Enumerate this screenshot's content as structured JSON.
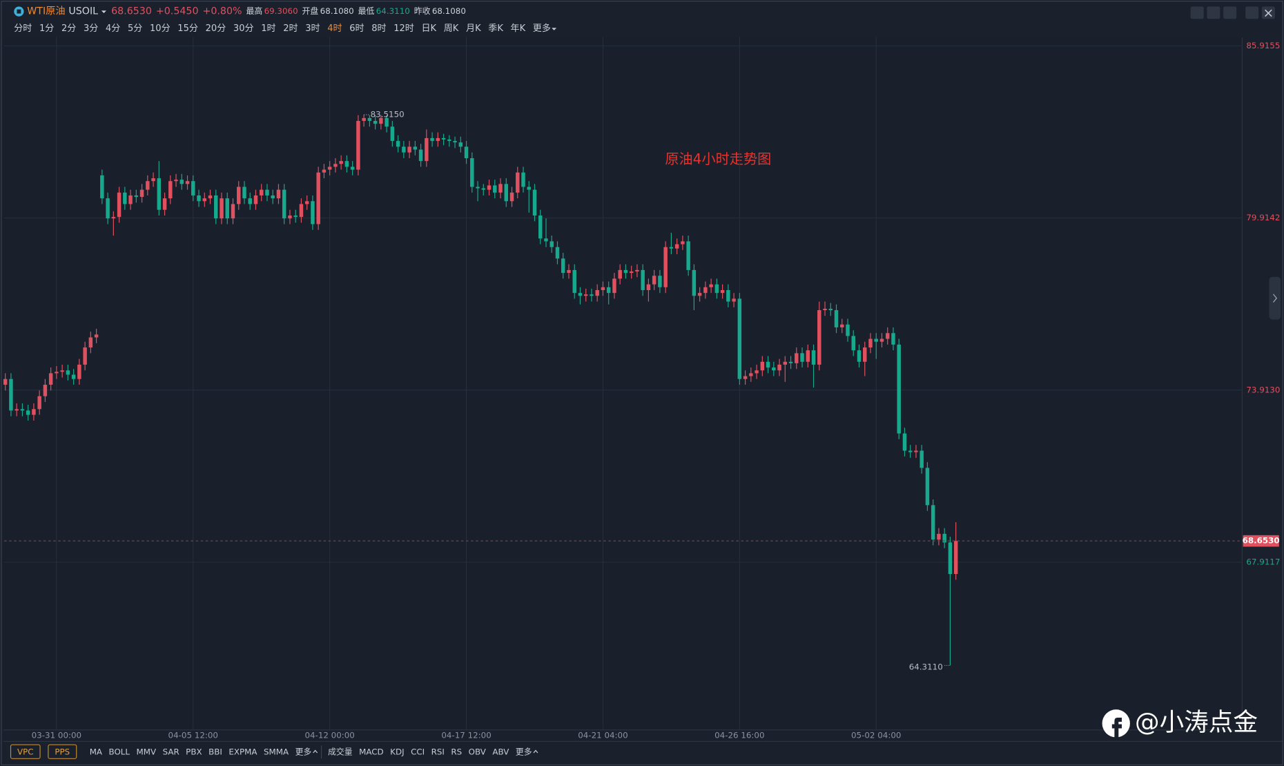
{
  "header": {
    "name": "WTI原油",
    "code": "USOIL",
    "price": "68.6530",
    "change": "+0.5450",
    "change_pct": "+0.80%",
    "stats": [
      {
        "label": "最高",
        "value": "69.3060"
      },
      {
        "label": "开盘",
        "value": "68.1080"
      },
      {
        "label": "最低",
        "value": "64.3110"
      },
      {
        "label": "昨收",
        "value": "68.1080"
      }
    ]
  },
  "toolbar": {
    "periods": [
      "分时",
      "1分",
      "2分",
      "3分",
      "4分",
      "5分",
      "10分",
      "15分",
      "20分",
      "30分",
      "1时",
      "2时",
      "3时",
      "4时",
      "6时",
      "8时",
      "12时",
      "日K",
      "周K",
      "月K",
      "季K",
      "年K",
      "更多"
    ],
    "active_period": "4时"
  },
  "indicators": {
    "tags": [
      "VPC",
      "PPS"
    ],
    "main": [
      "MA",
      "BOLL",
      "MMV",
      "SAR",
      "PBX",
      "BBI",
      "EXPMA",
      "SMMA",
      "更多"
    ],
    "sub": [
      "成交量",
      "MACD",
      "KDJ",
      "CCI",
      "RSI",
      "RS",
      "OBV",
      "ABV",
      "更多"
    ]
  },
  "watermark": "@小涛点金",
  "chart_data": {
    "type": "candlestick",
    "annotation": "原油4小时走势图",
    "up_color": "#e0505f",
    "down_color": "#17a98d",
    "max_label": "83.5150",
    "min_label": "64.3110",
    "last_label": "68.6530",
    "ylim": [
      62.09,
      86.23
    ],
    "yticks": [
      85.9155,
      79.9142,
      {
        "value": 73.913,
        "label": "73.9130"
      },
      67.9117
    ],
    "xlim": [
      -0.2,
      217.3
    ],
    "xticks": [
      {
        "value": 9,
        "label": "03-31 00:00"
      },
      {
        "value": 33,
        "label": "04-05 12:00"
      },
      {
        "value": 57,
        "label": "04-12 00:00"
      },
      {
        "value": 81,
        "label": "04-17 12:00"
      },
      {
        "value": 105,
        "label": "04-21 04:00"
      },
      {
        "value": 129,
        "label": "04-26 16:00"
      },
      {
        "value": 153,
        "label": "05-02 04:00"
      }
    ],
    "grid": true,
    "open": [
      74.1,
      74.3,
      73.2,
      73.25,
      73.2,
      73.05,
      73.25,
      73.7,
      74.1,
      74.5,
      74.55,
      74.6,
      74.45,
      74.3,
      74.8,
      75.4,
      75.75,
      81.4,
      80.6,
      79.9,
      79.95,
      80.8,
      80.4,
      80.7,
      80.65,
      80.9,
      81.2,
      81.3,
      80.2,
      80.6,
      81.2,
      81.25,
      81.1,
      81.2,
      80.7,
      80.5,
      80.6,
      80.7,
      79.9,
      80.6,
      79.9,
      80.4,
      81.0,
      80.6,
      80.4,
      80.7,
      80.9,
      80.7,
      80.6,
      80.9,
      79.9,
      80.0,
      79.95,
      80.4,
      80.5,
      79.7,
      81.5,
      81.6,
      81.7,
      81.8,
      81.9,
      81.7,
      81.6,
      83.3,
      83.4,
      83.3,
      83.2,
      83.4,
      83.1,
      82.6,
      82.4,
      82.2,
      82.4,
      82.3,
      81.9,
      82.7,
      82.6,
      82.7,
      82.65,
      82.6,
      82.55,
      82.4,
      82.0,
      81.0,
      80.95,
      80.9,
      81.05,
      80.8,
      81.1,
      80.5,
      80.8,
      81.5,
      81.0,
      80.9,
      80.0,
      79.2,
      79.1,
      78.9,
      78.5,
      78.0,
      78.1,
      77.3,
      77.2,
      77.25,
      77.2,
      77.4,
      77.5,
      77.3,
      77.8,
      78.1,
      78.0,
      78.05,
      78.1,
      77.4,
      77.6,
      77.9,
      77.5,
      78.9,
      78.85,
      79.0,
      79.1,
      78.1,
      77.2,
      77.3,
      77.5,
      77.6,
      77.3,
      77.4,
      77.0,
      77.1,
      74.3,
      74.4,
      74.5,
      74.6,
      74.9,
      74.7,
      74.6,
      74.8,
      74.9,
      74.85,
      75.2,
      74.9,
      75.3,
      74.8,
      76.7,
      76.75,
      76.7,
      76.1,
      76.2,
      75.8,
      75.3,
      74.9,
      75.4,
      75.7,
      75.6,
      75.7,
      75.9,
      75.5,
      72.4,
      71.8,
      71.75,
      71.8,
      71.2,
      69.9,
      68.7,
      68.9,
      68.6,
      67.5
    ],
    "high": [
      74.5,
      74.5,
      73.45,
      73.45,
      73.4,
      73.45,
      73.9,
      74.3,
      74.7,
      74.75,
      74.8,
      74.8,
      74.65,
      75.0,
      75.6,
      75.95,
      76.05,
      81.6,
      80.8,
      80.15,
      81.0,
      81.0,
      80.9,
      80.9,
      81.1,
      81.4,
      81.5,
      81.9,
      80.8,
      81.4,
      81.45,
      81.45,
      81.4,
      81.4,
      80.9,
      80.8,
      80.9,
      80.9,
      80.8,
      80.8,
      80.6,
      81.2,
      81.2,
      80.8,
      80.9,
      81.1,
      81.1,
      80.9,
      81.1,
      81.1,
      80.2,
      80.2,
      80.6,
      80.7,
      80.7,
      81.7,
      81.8,
      81.9,
      82.0,
      82.1,
      82.1,
      81.9,
      83.5,
      83.515,
      83.5,
      83.5,
      83.5,
      83.5,
      83.3,
      82.8,
      82.6,
      82.6,
      82.6,
      82.5,
      83.0,
      82.9,
      82.9,
      82.85,
      82.8,
      82.75,
      82.75,
      82.6,
      82.2,
      81.2,
      81.1,
      81.25,
      81.25,
      81.3,
      81.3,
      81.0,
      81.7,
      81.7,
      81.2,
      81.1,
      80.2,
      79.9,
      79.3,
      79.1,
      78.7,
      78.3,
      78.3,
      77.5,
      77.45,
      77.45,
      77.6,
      77.7,
      77.7,
      78.0,
      78.3,
      78.3,
      78.25,
      78.3,
      78.3,
      77.8,
      78.1,
      78.1,
      79.1,
      79.4,
      79.2,
      79.3,
      79.3,
      78.3,
      77.5,
      77.7,
      77.8,
      77.8,
      77.6,
      77.6,
      77.3,
      77.3,
      74.6,
      74.7,
      74.8,
      75.1,
      75.1,
      74.9,
      75.0,
      75.1,
      75.1,
      75.4,
      75.4,
      75.5,
      75.5,
      77.0,
      77.0,
      76.95,
      76.9,
      76.4,
      76.4,
      76.0,
      75.5,
      75.6,
      75.9,
      75.9,
      75.9,
      76.1,
      76.1,
      75.7,
      72.6,
      72.0,
      72.0,
      72.0,
      71.4,
      70.1,
      69.1,
      69.1,
      68.8,
      69.306
    ],
    "low": [
      73.9,
      73.0,
      73.0,
      73.0,
      72.85,
      72.85,
      73.05,
      73.5,
      73.9,
      74.3,
      74.35,
      74.25,
      74.1,
      74.1,
      74.6,
      75.2,
      75.55,
      80.4,
      79.7,
      79.3,
      79.75,
      80.2,
      80.2,
      80.45,
      80.45,
      80.7,
      81.0,
      80.0,
      80.0,
      80.4,
      81.0,
      80.9,
      80.9,
      80.5,
      80.3,
      80.3,
      80.4,
      79.7,
      79.7,
      79.7,
      79.7,
      80.2,
      80.4,
      80.2,
      80.2,
      80.5,
      80.5,
      80.4,
      80.4,
      79.7,
      79.7,
      79.75,
      79.75,
      80.2,
      79.5,
      79.5,
      81.3,
      81.4,
      81.5,
      81.6,
      81.5,
      81.4,
      81.4,
      83.1,
      83.1,
      83.0,
      83.0,
      82.9,
      82.4,
      82.2,
      82.0,
      82.0,
      82.1,
      81.7,
      81.7,
      82.4,
      82.4,
      82.45,
      82.4,
      82.35,
      82.2,
      81.8,
      80.8,
      80.5,
      80.7,
      80.7,
      80.6,
      80.6,
      80.3,
      80.3,
      80.6,
      80.8,
      80.1,
      79.8,
      79.0,
      78.9,
      78.7,
      78.3,
      77.8,
      77.8,
      77.1,
      76.9,
      77.0,
      77.0,
      77.0,
      77.2,
      76.9,
      77.1,
      77.6,
      77.8,
      77.8,
      77.85,
      77.2,
      77.0,
      77.4,
      77.3,
      77.3,
      78.65,
      78.65,
      78.8,
      77.9,
      76.7,
      77.0,
      77.1,
      77.3,
      77.1,
      77.1,
      76.8,
      76.8,
      74.1,
      74.1,
      74.2,
      74.3,
      74.4,
      74.5,
      74.4,
      74.4,
      74.2,
      74.65,
      74.65,
      74.7,
      74.7,
      74.0,
      74.6,
      76.5,
      76.5,
      75.9,
      75.9,
      75.6,
      75.1,
      74.7,
      74.4,
      75.2,
      75.0,
      75.4,
      75.5,
      75.3,
      72.2,
      71.6,
      71.55,
      71.55,
      71.0,
      69.7,
      68.5,
      68.5,
      68.4,
      64.311,
      67.3
    ],
    "close": [
      74.3,
      73.2,
      73.25,
      73.2,
      73.05,
      73.25,
      73.7,
      74.1,
      74.5,
      74.55,
      74.6,
      74.45,
      74.3,
      74.8,
      75.4,
      75.75,
      75.85,
      80.6,
      79.9,
      79.95,
      80.8,
      80.4,
      80.7,
      80.65,
      80.9,
      81.2,
      81.3,
      80.2,
      80.6,
      81.2,
      81.25,
      81.1,
      81.2,
      80.7,
      80.5,
      80.6,
      80.7,
      79.9,
      80.6,
      79.9,
      80.4,
      81.0,
      80.6,
      80.4,
      80.7,
      80.9,
      80.7,
      80.6,
      80.9,
      79.9,
      80.0,
      79.95,
      80.4,
      80.5,
      79.7,
      81.5,
      81.6,
      81.7,
      81.8,
      81.9,
      81.7,
      81.6,
      83.3,
      83.4,
      83.3,
      83.2,
      83.4,
      83.1,
      82.6,
      82.4,
      82.2,
      82.4,
      82.3,
      81.9,
      82.7,
      82.6,
      82.7,
      82.65,
      82.6,
      82.55,
      82.4,
      82.0,
      81.0,
      80.95,
      80.9,
      81.05,
      80.8,
      81.1,
      80.5,
      80.8,
      81.5,
      81.0,
      80.9,
      80.0,
      79.2,
      79.1,
      78.9,
      78.5,
      78.0,
      78.1,
      77.3,
      77.2,
      77.25,
      77.2,
      77.4,
      77.5,
      77.3,
      77.8,
      78.1,
      78.0,
      78.05,
      78.1,
      77.4,
      77.6,
      77.9,
      77.5,
      78.9,
      78.85,
      79.0,
      79.1,
      78.1,
      77.2,
      77.3,
      77.5,
      77.6,
      77.3,
      77.4,
      77.0,
      77.1,
      74.3,
      74.4,
      74.5,
      74.6,
      74.9,
      74.7,
      74.6,
      74.8,
      74.9,
      74.85,
      75.2,
      74.9,
      75.3,
      74.8,
      76.7,
      76.75,
      76.7,
      76.1,
      76.2,
      75.8,
      75.3,
      74.9,
      75.4,
      75.7,
      75.6,
      75.7,
      75.9,
      75.5,
      72.4,
      71.8,
      71.75,
      71.8,
      71.2,
      69.9,
      68.7,
      68.9,
      68.6,
      67.5,
      68.653
    ]
  }
}
